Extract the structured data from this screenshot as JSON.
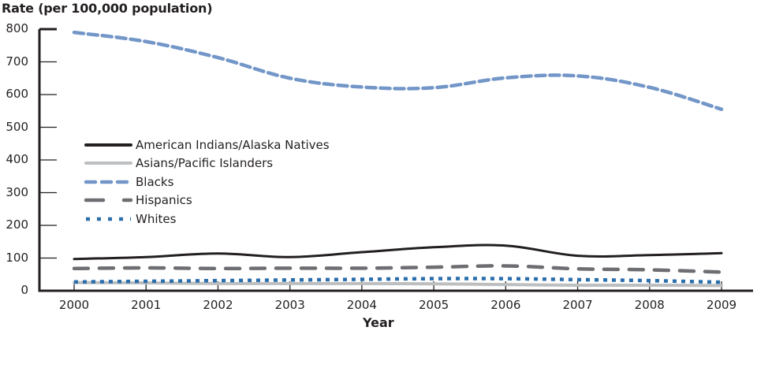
{
  "chart_data": {
    "type": "line",
    "title": "",
    "ylabel": "Rate (per 100,000 population)",
    "xlabel": "Year",
    "x": [
      "2000",
      "2001",
      "2002",
      "2003",
      "2004",
      "2005",
      "2006",
      "2007",
      "2008",
      "2009"
    ],
    "yticks": [
      "0",
      "100",
      "200",
      "300",
      "400",
      "500",
      "600",
      "700",
      "800"
    ],
    "ylim": [
      0,
      800
    ],
    "grid": false,
    "legend_position": "inside-left-middle",
    "series": [
      {
        "name": "American Indians/Alaska Natives",
        "color": "#231f20",
        "style": "solid",
        "values": [
          97,
          103,
          114,
          103,
          118,
          133,
          138,
          107,
          109,
          115
        ]
      },
      {
        "name": "Asians/Pacific Islanders",
        "color": "#bcbec0",
        "style": "solid",
        "values": [
          25,
          24,
          22,
          22,
          22,
          21,
          19,
          17,
          17,
          16
        ]
      },
      {
        "name": "Blacks",
        "color": "#7396c8",
        "style": "dashed",
        "values": [
          790,
          762,
          713,
          650,
          623,
          621,
          651,
          657,
          622,
          555
        ]
      },
      {
        "name": "Hispanics",
        "color": "#6d6e71",
        "style": "long-dash",
        "values": [
          68,
          70,
          68,
          69,
          69,
          72,
          76,
          67,
          64,
          57
        ]
      },
      {
        "name": "Whites",
        "color": "#2a6eac",
        "style": "dotted",
        "values": [
          27,
          29,
          31,
          33,
          35,
          37,
          37,
          34,
          31,
          26
        ]
      }
    ]
  }
}
